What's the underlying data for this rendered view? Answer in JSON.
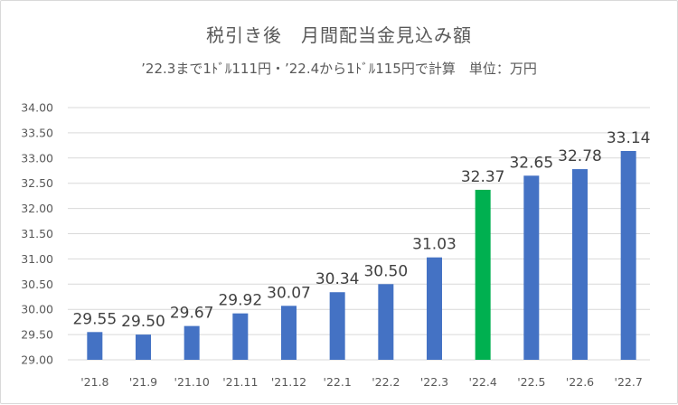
{
  "chart_data": {
    "type": "bar",
    "title": "税引き後　月間配当金見込み額",
    "subtitle": "’22.3まで1ﾄﾞﾙ111円・’22.4から1ﾄﾞﾙ115円で計算　単位：万円",
    "categories": [
      "'21.8",
      "'21.9",
      "'21.10",
      "'21.11",
      "'21.12",
      "'22.1",
      "'22.2",
      "'22.3",
      "'22.4",
      "'22.5",
      "'22.6",
      "'22.7"
    ],
    "values": [
      29.55,
      29.5,
      29.67,
      29.92,
      30.07,
      30.34,
      30.5,
      31.03,
      32.37,
      32.65,
      32.78,
      33.14
    ],
    "data_labels": [
      "29.55",
      "29.50",
      "29.67",
      "29.92",
      "30.07",
      "30.34",
      "30.50",
      "31.03",
      "32.37",
      "32.65",
      "32.78",
      "33.14"
    ],
    "highlight_category": "'22.4",
    "ylim": [
      29.0,
      34.0
    ],
    "ystep": 0.5,
    "ytick_labels": [
      "29.00",
      "29.50",
      "30.00",
      "30.50",
      "31.00",
      "31.50",
      "32.00",
      "32.50",
      "33.00",
      "33.50",
      "34.00"
    ],
    "grid": true,
    "colors": {
      "bar": "#4472c4",
      "highlight": "#00b050",
      "grid": "#d9d9d9",
      "text": "#595959"
    }
  }
}
